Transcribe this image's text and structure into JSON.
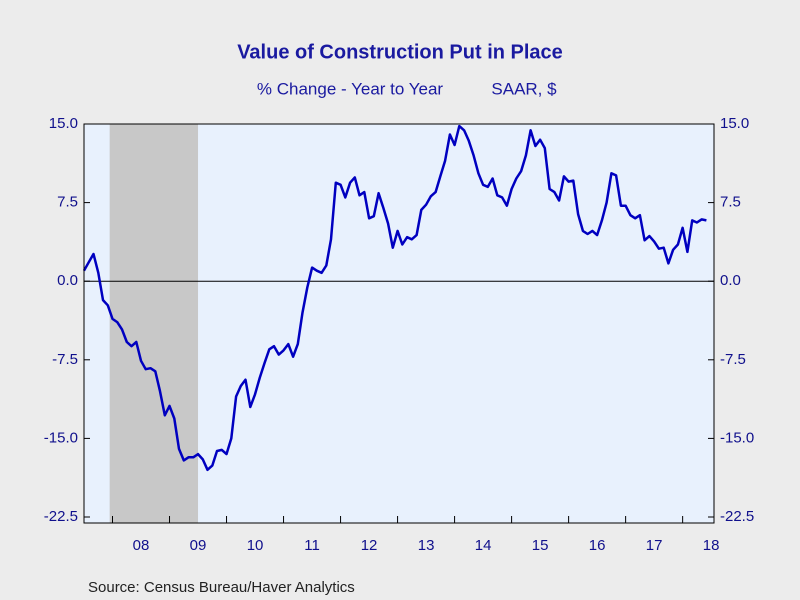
{
  "chart_data": {
    "type": "line",
    "title": "Value of Construction Put in Place",
    "subtitle": [
      "% Change - Year to Year",
      "SAAR, $"
    ],
    "source": "Source:  Census Bureau/Haver Analytics",
    "xlim": [
      2007.5,
      2018.55
    ],
    "xticks": [
      {
        "value": 2008.5,
        "label": "08"
      },
      {
        "value": 2009.5,
        "label": "09"
      },
      {
        "value": 2010.5,
        "label": "10"
      },
      {
        "value": 2011.5,
        "label": "11"
      },
      {
        "value": 2012.5,
        "label": "12"
      },
      {
        "value": 2013.5,
        "label": "13"
      },
      {
        "value": 2014.5,
        "label": "14"
      },
      {
        "value": 2015.5,
        "label": "15"
      },
      {
        "value": 2016.5,
        "label": "16"
      },
      {
        "value": 2017.5,
        "label": "17"
      },
      {
        "value": 2018.5,
        "label": "18"
      }
    ],
    "ylim": [
      -22.5,
      15
    ],
    "yticks": [
      {
        "value": 15,
        "label": "15.0"
      },
      7.5,
      {
        "value": 0,
        "label": "0.0"
      },
      -7.5,
      {
        "value": -15,
        "label": "-15.0"
      },
      -22.5
    ],
    "recession": [
      2007.95,
      2009.5
    ],
    "x": [
      2007.5,
      2007.583,
      2007.667,
      2007.75,
      2007.833,
      2007.917,
      2008,
      2008.083,
      2008.167,
      2008.25,
      2008.333,
      2008.417,
      2008.5,
      2008.583,
      2008.667,
      2008.75,
      2008.833,
      2008.917,
      2009,
      2009.083,
      2009.167,
      2009.25,
      2009.333,
      2009.417,
      2009.5,
      2009.583,
      2009.667,
      2009.75,
      2009.833,
      2009.917,
      2010,
      2010.083,
      2010.167,
      2010.25,
      2010.333,
      2010.417,
      2010.5,
      2010.583,
      2010.667,
      2010.75,
      2010.833,
      2010.917,
      2011,
      2011.083,
      2011.167,
      2011.25,
      2011.333,
      2011.417,
      2011.5,
      2011.583,
      2011.667,
      2011.75,
      2011.833,
      2011.917,
      2012,
      2012.083,
      2012.167,
      2012.25,
      2012.333,
      2012.417,
      2012.5,
      2012.583,
      2012.667,
      2012.75,
      2012.833,
      2012.917,
      2013,
      2013.083,
      2013.167,
      2013.25,
      2013.333,
      2013.417,
      2013.5,
      2013.583,
      2013.667,
      2013.75,
      2013.833,
      2013.917,
      2014,
      2014.083,
      2014.167,
      2014.25,
      2014.333,
      2014.417,
      2014.5,
      2014.583,
      2014.667,
      2014.75,
      2014.833,
      2014.917,
      2015,
      2015.083,
      2015.167,
      2015.25,
      2015.333,
      2015.417,
      2015.5,
      2015.583,
      2015.667,
      2015.75,
      2015.833,
      2015.917,
      2016,
      2016.083,
      2016.167,
      2016.25,
      2016.333,
      2016.417,
      2016.5,
      2016.583,
      2016.667,
      2016.75,
      2016.833,
      2016.917,
      2017,
      2017.083,
      2017.167,
      2017.25,
      2017.333,
      2017.417,
      2017.5,
      2017.583,
      2017.667,
      2017.75,
      2017.833,
      2017.917,
      2018,
      2018.083,
      2018.167,
      2018.25,
      2018.333,
      2018.417
    ],
    "series": [
      {
        "color": "#0000c0",
        "values": [
          1.0,
          1.8,
          2.6,
          0.8,
          -1.8,
          -2.3,
          -3.6,
          -3.9,
          -4.6,
          -5.8,
          -6.2,
          -5.8,
          -7.6,
          -8.4,
          -8.3,
          -8.6,
          -10.5,
          -12.8,
          -11.9,
          -13.1,
          -16.0,
          -17.1,
          -16.8,
          -16.8,
          -16.5,
          -17.0,
          -18.0,
          -17.6,
          -16.2,
          -16.1,
          -16.5,
          -15.0,
          -11.0,
          -10.0,
          -9.4,
          -12.0,
          -10.8,
          -9.2,
          -7.8,
          -6.5,
          -6.2,
          -7.0,
          -6.6,
          -6.0,
          -7.2,
          -6.0,
          -3.0,
          -0.6,
          1.3,
          1.0,
          0.8,
          1.5,
          4.0,
          9.4,
          9.2,
          8.0,
          9.4,
          9.9,
          8.2,
          8.5,
          6.0,
          6.2,
          8.4,
          7.0,
          5.5,
          3.2,
          4.8,
          3.5,
          4.2,
          4.0,
          4.4,
          6.8,
          7.3,
          8.1,
          8.5,
          10.0,
          11.5,
          14.0,
          13.0,
          14.8,
          14.4,
          13.4,
          12.0,
          10.3,
          9.2,
          9.0,
          9.8,
          8.2,
          8.0,
          7.2,
          8.8,
          9.8,
          10.5,
          12.0,
          14.4,
          12.9,
          13.5,
          12.7,
          8.8,
          8.5,
          7.7,
          10.0,
          9.5,
          9.6,
          6.4,
          4.8,
          4.5,
          4.8,
          4.4,
          5.8,
          7.5,
          10.3,
          10.1,
          7.2,
          7.2,
          6.3,
          6.0,
          6.3,
          3.9,
          4.3,
          3.8,
          3.1,
          3.2,
          1.7,
          3.0,
          3.5,
          5.1,
          2.8,
          5.8,
          5.6,
          5.9,
          5.8
        ]
      }
    ]
  }
}
